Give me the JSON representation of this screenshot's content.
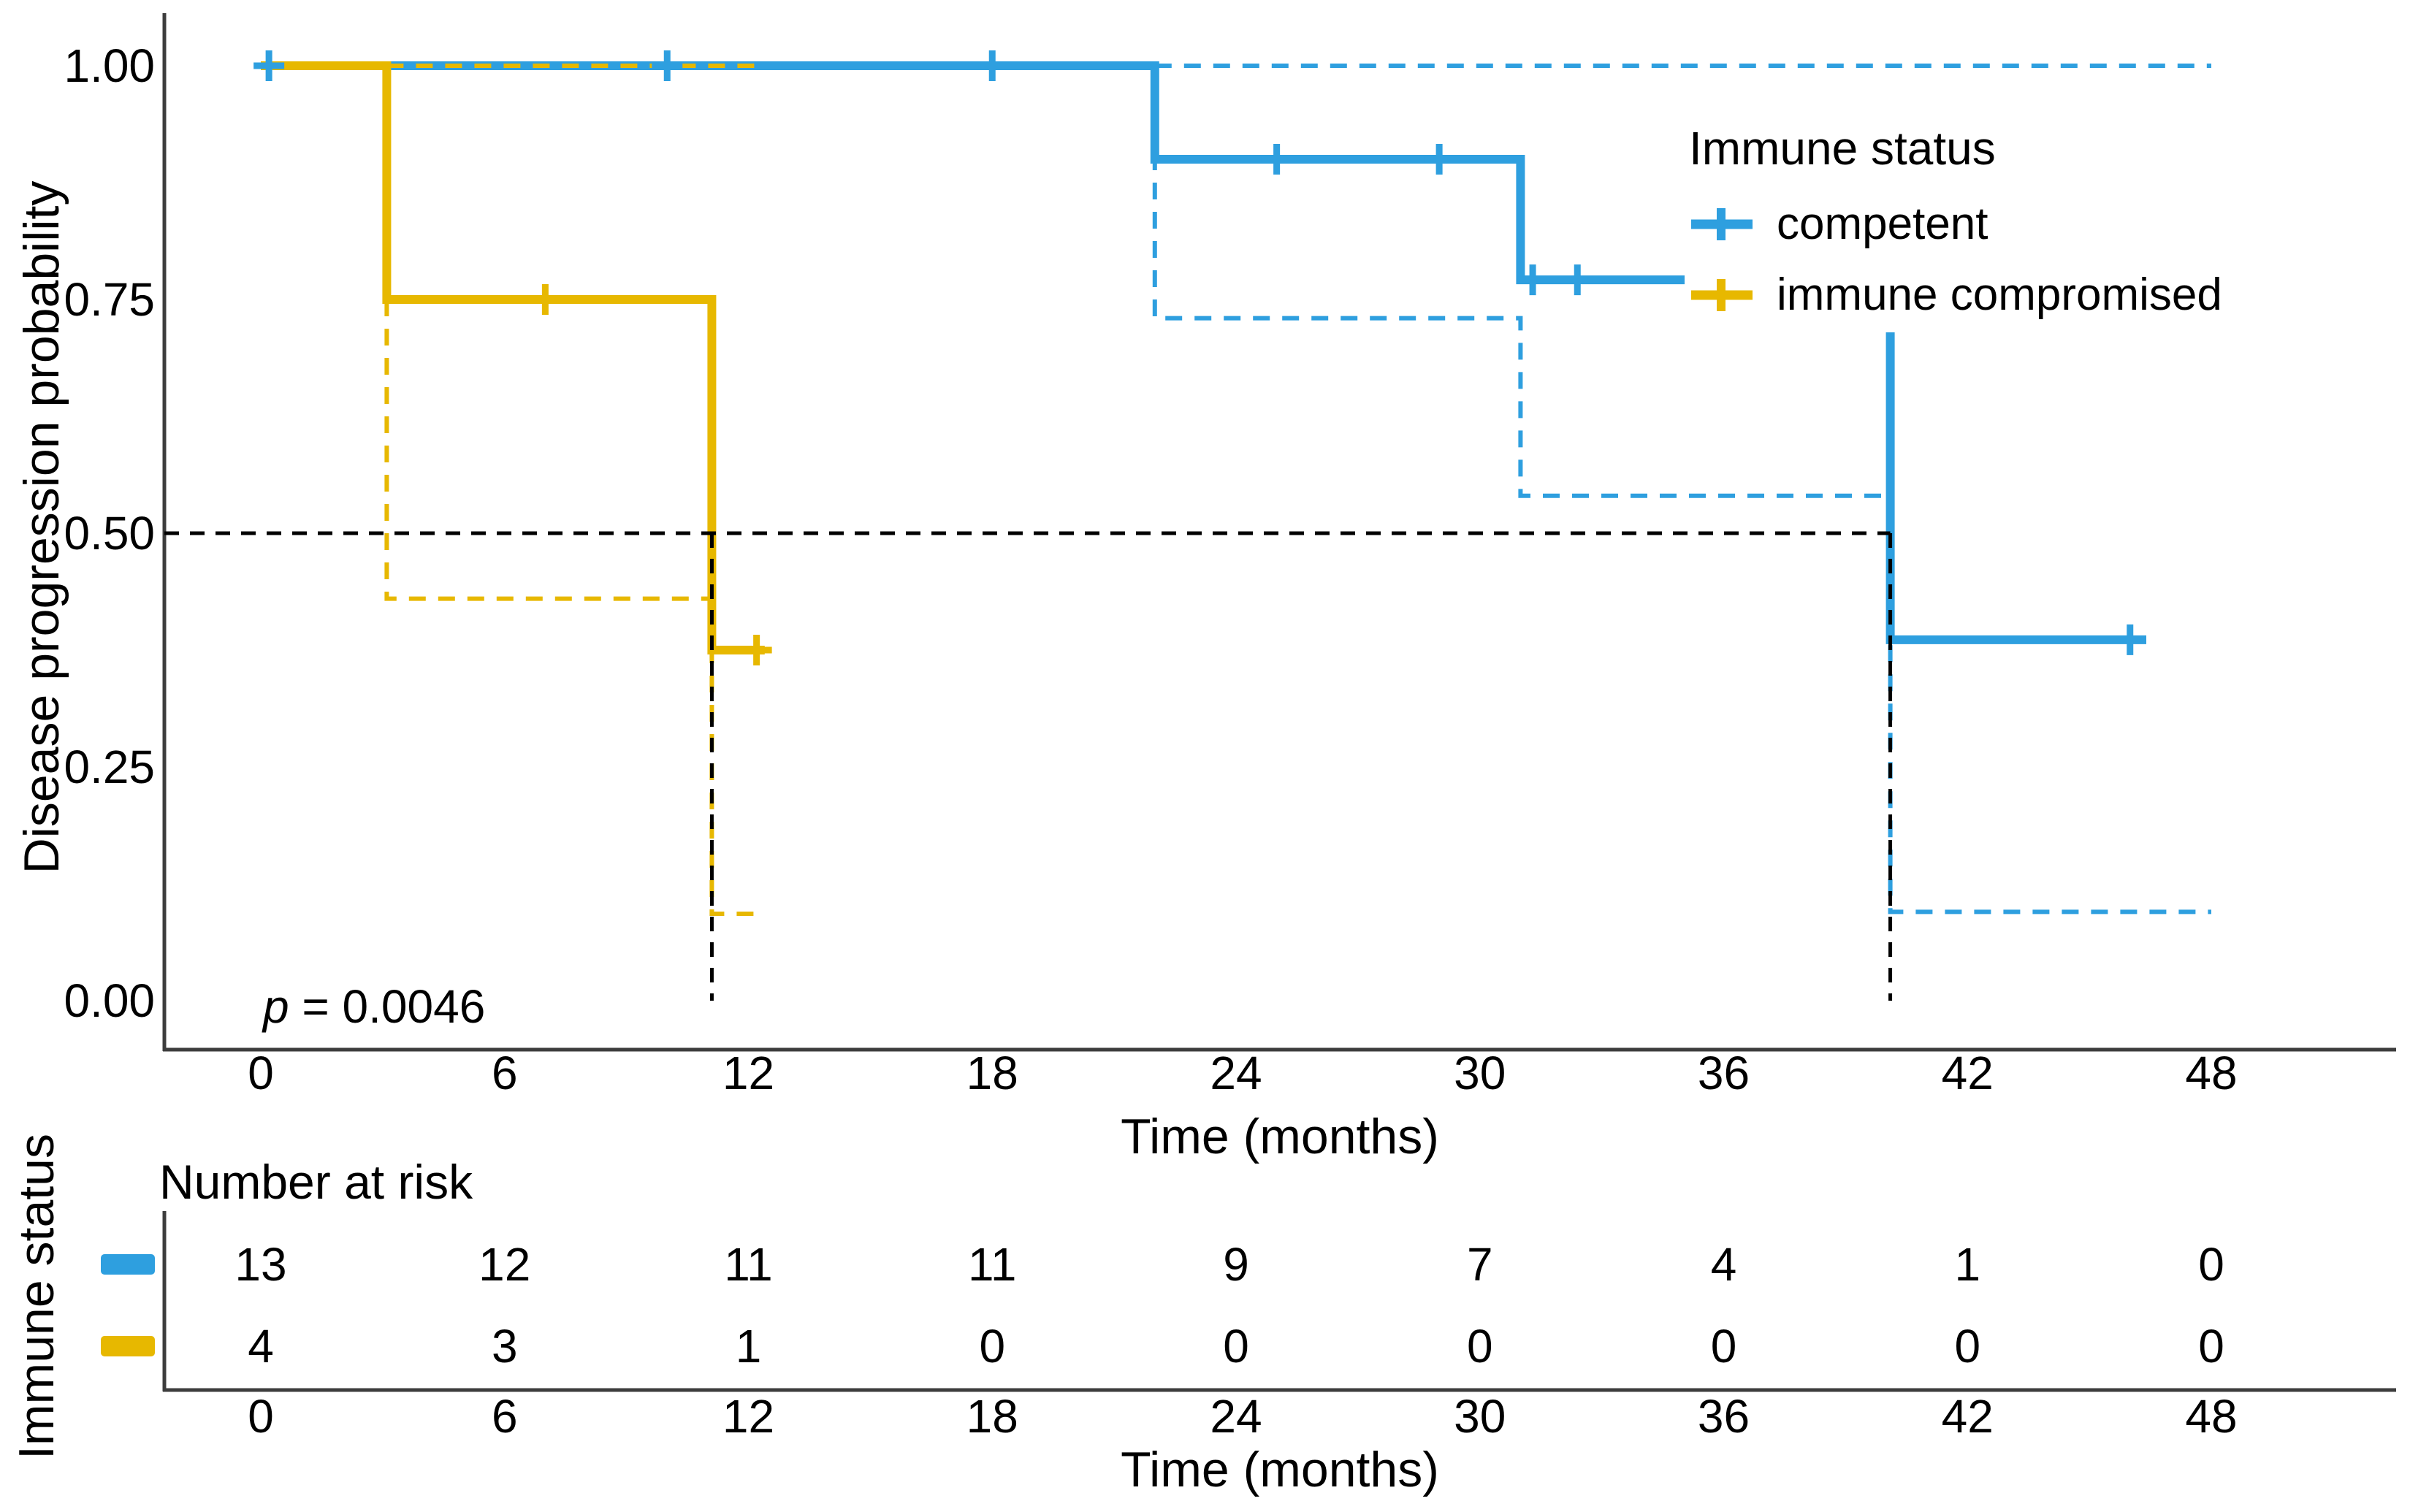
{
  "figure": {
    "p_var": "p",
    "p_rest": " = 0.0046"
  },
  "main_plot": {
    "ylabel": "Disease progression probability",
    "xlabel": "Time (months)",
    "y_tick_labels": [
      "1.00",
      "0.75",
      "0.50",
      "0.25",
      "0.00"
    ],
    "x_tick_labels": [
      "0",
      "6",
      "12",
      "18",
      "24",
      "30",
      "36",
      "42",
      "48"
    ]
  },
  "legend": {
    "title": "Immune status",
    "items": [
      {
        "label": "competent",
        "color": "#2E9FDF"
      },
      {
        "label": "immune compromised",
        "color": "#E7B800"
      }
    ]
  },
  "risk_table": {
    "title": "Number at risk",
    "ylabel": "Immune status",
    "xlabel": "Time (months)",
    "x_tick_labels": [
      "0",
      "6",
      "12",
      "18",
      "24",
      "30",
      "36",
      "42",
      "48"
    ]
  },
  "chart_data": {
    "type": "line",
    "subtype": "kaplan_meier_step",
    "title": "",
    "xlabel": "Time (months)",
    "ylabel": "Disease progression probability",
    "xlim": [
      0,
      48
    ],
    "ylim": [
      0,
      1
    ],
    "x_ticks": [
      0,
      6,
      12,
      18,
      24,
      30,
      36,
      42,
      48
    ],
    "y_ticks": [
      1.0,
      0.75,
      0.5,
      0.25,
      0.0
    ],
    "grid": false,
    "legend_position": "inside-top-right",
    "p_value": "p = 0.0046",
    "median_probability_line": 0.5,
    "series": [
      {
        "name": "competent",
        "color": "#2E9FDF",
        "steps": [
          [
            0,
            1.0
          ],
          [
            22,
            1.0
          ],
          [
            22,
            0.9
          ],
          [
            31,
            0.9
          ],
          [
            31,
            0.771
          ],
          [
            40.1,
            0.771
          ],
          [
            40.1,
            0.386
          ],
          [
            46.4,
            0.386
          ]
        ],
        "censors": [
          [
            0.2,
            1.0
          ],
          [
            10,
            1.0
          ],
          [
            18,
            1.0
          ],
          [
            25,
            0.9
          ],
          [
            29,
            0.9
          ],
          [
            31.3,
            0.771
          ],
          [
            32.4,
            0.771
          ],
          [
            46.0,
            0.386
          ]
        ],
        "ci_upper": [
          [
            22,
            1.0
          ],
          [
            48,
            1.0
          ]
        ],
        "ci_lower": [
          [
            22,
            1.0
          ],
          [
            22,
            0.73
          ],
          [
            31,
            0.73
          ],
          [
            31,
            0.54
          ],
          [
            40.1,
            0.54
          ],
          [
            40.1,
            0.095
          ],
          [
            48,
            0.095
          ]
        ],
        "median_time": 40.1
      },
      {
        "name": "immune compromised",
        "color": "#E7B800",
        "steps": [
          [
            0,
            1.0
          ],
          [
            3.1,
            1.0
          ],
          [
            3.1,
            0.75
          ],
          [
            11.1,
            0.75
          ],
          [
            11.1,
            0.375
          ],
          [
            12.4,
            0.375
          ]
        ],
        "censors": [
          [
            7,
            0.75
          ],
          [
            12.2,
            0.375
          ]
        ],
        "ci_upper": [
          [
            3.1,
            1.0
          ],
          [
            12.4,
            1.0
          ]
        ],
        "ci_lower": [
          [
            3.1,
            1.0
          ],
          [
            3.1,
            0.43
          ],
          [
            11.1,
            0.43
          ],
          [
            11.1,
            0.093
          ],
          [
            12.4,
            0.093
          ]
        ],
        "median_time": 11.1
      }
    ],
    "risk_table": {
      "title": "Number at risk",
      "group_axis_label": "Immune status",
      "times": [
        0,
        6,
        12,
        18,
        24,
        30,
        36,
        42,
        48
      ],
      "rows": [
        {
          "name": "competent",
          "color": "#2E9FDF",
          "counts": [
            13,
            12,
            11,
            11,
            9,
            7,
            4,
            1,
            0
          ]
        },
        {
          "name": "immune compromised",
          "color": "#E7B800",
          "counts": [
            4,
            3,
            1,
            0,
            0,
            0,
            0,
            0,
            0
          ]
        }
      ]
    }
  }
}
